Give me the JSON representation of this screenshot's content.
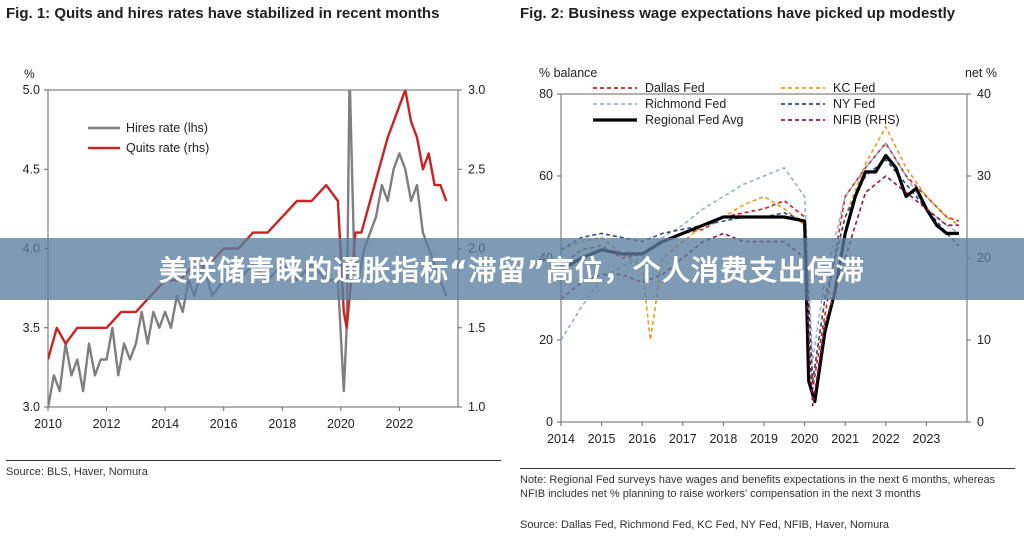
{
  "banner": {
    "headline": "美联储青睐的通胀指标“滞留”高位，个人消费支出停滞"
  },
  "chart_data": [
    {
      "type": "line",
      "title": "Fig. 1: Quits and hires rates have stabilized in recent months",
      "y_unit_label": "%",
      "ylim_left": [
        3.0,
        5.0
      ],
      "yticks_left": [
        "3.0",
        "3.5",
        "4.0",
        "4.5",
        "5.0"
      ],
      "ylim_right": [
        1.0,
        3.0
      ],
      "yticks_right": [
        "1.0",
        "1.5",
        "2.0",
        "2.5",
        "3.0"
      ],
      "xlim": [
        2010,
        2024
      ],
      "xticks": [
        "2010",
        "2012",
        "2014",
        "2016",
        "2018",
        "2020",
        "2022"
      ],
      "legend_position": "top-left",
      "series": [
        {
          "name": "Hires rate (lhs)",
          "axis": "left",
          "color": "#7f7f7f",
          "x": [
            2010,
            2010.2,
            2010.4,
            2010.6,
            2010.8,
            2011,
            2011.2,
            2011.4,
            2011.6,
            2011.8,
            2012,
            2012.2,
            2012.4,
            2012.6,
            2012.8,
            2013,
            2013.2,
            2013.4,
            2013.6,
            2013.8,
            2014,
            2014.2,
            2014.4,
            2014.6,
            2014.8,
            2015,
            2015.3,
            2015.6,
            2016,
            2016.5,
            2017,
            2017.5,
            2018,
            2018.5,
            2019,
            2019.5,
            2019.9,
            2020.1,
            2020.2,
            2020.3,
            2020.45,
            2020.6,
            2020.8,
            2021,
            2021.2,
            2021.4,
            2021.6,
            2021.8,
            2022,
            2022.2,
            2022.4,
            2022.6,
            2022.8,
            2023,
            2023.2,
            2023.4,
            2023.6
          ],
          "values": [
            3.0,
            3.2,
            3.1,
            3.4,
            3.2,
            3.3,
            3.1,
            3.4,
            3.2,
            3.3,
            3.3,
            3.5,
            3.2,
            3.4,
            3.3,
            3.4,
            3.6,
            3.4,
            3.6,
            3.5,
            3.6,
            3.5,
            3.7,
            3.6,
            3.8,
            3.7,
            3.9,
            3.7,
            3.8,
            3.8,
            3.9,
            3.8,
            3.9,
            3.8,
            3.9,
            3.8,
            3.8,
            3.1,
            3.5,
            5.1,
            4.0,
            3.8,
            4.0,
            4.1,
            4.2,
            4.4,
            4.3,
            4.5,
            4.6,
            4.5,
            4.3,
            4.4,
            4.1,
            4.0,
            3.9,
            3.8,
            3.7
          ]
        },
        {
          "name": "Quits rate (rhs)",
          "axis": "right",
          "color": "#cc2222",
          "x": [
            2010,
            2010.3,
            2010.6,
            2011,
            2011.5,
            2012,
            2012.5,
            2013,
            2013.5,
            2014,
            2014.5,
            2015,
            2015.5,
            2016,
            2016.5,
            2017,
            2017.5,
            2018,
            2018.5,
            2019,
            2019.5,
            2019.9,
            2020.1,
            2020.2,
            2020.35,
            2020.5,
            2020.7,
            2021,
            2021.3,
            2021.6,
            2021.8,
            2022,
            2022.2,
            2022.4,
            2022.6,
            2022.8,
            2023,
            2023.2,
            2023.4,
            2023.6
          ],
          "values": [
            1.3,
            1.5,
            1.4,
            1.5,
            1.5,
            1.5,
            1.6,
            1.6,
            1.7,
            1.8,
            1.8,
            1.9,
            1.9,
            2.0,
            2.0,
            2.1,
            2.1,
            2.2,
            2.3,
            2.3,
            2.4,
            2.3,
            1.6,
            1.5,
            1.8,
            2.1,
            2.1,
            2.3,
            2.5,
            2.7,
            2.8,
            2.9,
            3.0,
            2.8,
            2.7,
            2.5,
            2.6,
            2.4,
            2.4,
            2.3
          ]
        }
      ],
      "source": "Source: BLS, Haver, Nomura"
    },
    {
      "type": "line",
      "title": "Fig. 2: Business wage expectations have picked up modestly",
      "ylabel_left": "% balance",
      "ylabel_right": "net %",
      "ylim_left": [
        0,
        80
      ],
      "yticks_left": [
        "0",
        "20",
        "40",
        "60",
        "80"
      ],
      "ylim_right": [
        0,
        40
      ],
      "yticks_right": [
        "0",
        "10",
        "20",
        "30",
        "40"
      ],
      "xlim": [
        2014,
        2024
      ],
      "xticks": [
        "2014",
        "2015",
        "2016",
        "2017",
        "2018",
        "2019",
        "2020",
        "2021",
        "2022",
        "2023"
      ],
      "legend_position": "top",
      "series": [
        {
          "name": "Dallas Fed",
          "axis": "left",
          "color": "#cc2222",
          "dash": "4,3",
          "x": [
            2014,
            2014.5,
            2015,
            2015.5,
            2016,
            2016.5,
            2017,
            2017.5,
            2018,
            2018.5,
            2019,
            2019.5,
            2020,
            2020.2,
            2020.4,
            2020.7,
            2021,
            2021.5,
            2022,
            2022.5,
            2023,
            2023.5,
            2023.8
          ],
          "values": [
            38,
            42,
            43,
            40,
            41,
            44,
            46,
            47,
            50,
            51,
            52,
            54,
            50,
            8,
            20,
            38,
            55,
            62,
            68,
            60,
            55,
            50,
            49
          ]
        },
        {
          "name": "KC Fed",
          "axis": "left",
          "color": "#e0a020",
          "dash": "4,3",
          "x": [
            2014,
            2014.5,
            2015,
            2015.5,
            2016,
            2016.2,
            2016.5,
            2017,
            2017.5,
            2018,
            2018.5,
            2019,
            2019.5,
            2020,
            2020.2,
            2020.5,
            2021,
            2021.5,
            2022,
            2022.5,
            2023,
            2023.5,
            2023.8
          ],
          "values": [
            42,
            44,
            45,
            41,
            38,
            20,
            40,
            44,
            48,
            50,
            53,
            55,
            52,
            48,
            10,
            30,
            50,
            63,
            72,
            62,
            55,
            50,
            48
          ]
        },
        {
          "name": "Richmond Fed",
          "axis": "left",
          "color": "#9ab0c8",
          "dash": "4,3",
          "x": [
            2014,
            2014.5,
            2015,
            2015.5,
            2016,
            2016.5,
            2017,
            2017.5,
            2018,
            2018.5,
            2019,
            2019.5,
            2020,
            2020.2,
            2020.5,
            2021,
            2021.5,
            2022,
            2022.5,
            2023,
            2023.5,
            2023.8
          ],
          "values": [
            20,
            28,
            35,
            38,
            40,
            45,
            48,
            52,
            55,
            58,
            60,
            62,
            55,
            15,
            35,
            55,
            62,
            68,
            60,
            52,
            48,
            46
          ]
        },
        {
          "name": "NY Fed",
          "axis": "left",
          "color": "#2a4f7a",
          "dash": "4,3",
          "x": [
            2014,
            2014.5,
            2015,
            2015.5,
            2016,
            2016.5,
            2017,
            2017.5,
            2018,
            2018.5,
            2019,
            2019.5,
            2020,
            2020.2,
            2020.5,
            2021,
            2021.5,
            2022,
            2022.5,
            2023,
            2023.5,
            2023.8
          ],
          "values": [
            42,
            45,
            46,
            45,
            44,
            46,
            47,
            48,
            49,
            50,
            50,
            51,
            49,
            10,
            30,
            50,
            60,
            64,
            58,
            52,
            46,
            43
          ]
        },
        {
          "name": "Regional Fed Avg",
          "axis": "left",
          "color": "#000000",
          "dash": "",
          "x": [
            2014,
            2014.5,
            2015,
            2015.5,
            2016,
            2016.5,
            2017,
            2017.5,
            2018,
            2018.5,
            2019,
            2019.5,
            2020,
            2020.1,
            2020.25,
            2020.5,
            2020.75,
            2021,
            2021.25,
            2021.5,
            2021.75,
            2022,
            2022.25,
            2022.5,
            2022.75,
            2023,
            2023.25,
            2023.5,
            2023.8
          ],
          "values": [
            37,
            40,
            42,
            41,
            41,
            44,
            46,
            48,
            50,
            50,
            50,
            50,
            49,
            10,
            5,
            22,
            32,
            46,
            55,
            61,
            61,
            65,
            62,
            55,
            57,
            52,
            48,
            46,
            46
          ]
        },
        {
          "name": "NFIB (RHS)",
          "axis": "right",
          "color": "#8b1a4a",
          "dash": "4,3",
          "x": [
            2014,
            2014.5,
            2015,
            2015.5,
            2016,
            2016.5,
            2017,
            2017.5,
            2018,
            2018.5,
            2019,
            2019.5,
            2020,
            2020.2,
            2020.5,
            2021,
            2021.5,
            2022,
            2022.5,
            2023,
            2023.5,
            2023.8
          ],
          "values": [
            15,
            17,
            18,
            18,
            17,
            18,
            20,
            22,
            23,
            22,
            22,
            22,
            20,
            2,
            12,
            20,
            28,
            30,
            28,
            26,
            24,
            24
          ]
        }
      ],
      "note": "Note: Regional Fed surveys have wages and benefits expectations in the next 6 months, whereas NFIB includes net % planning to raise workers' compensation in the next 3 months",
      "source": "Source: Dallas Fed, Richmond Fed, KC Fed, NY Fed, NFIB, Haver, Nomura"
    }
  ]
}
